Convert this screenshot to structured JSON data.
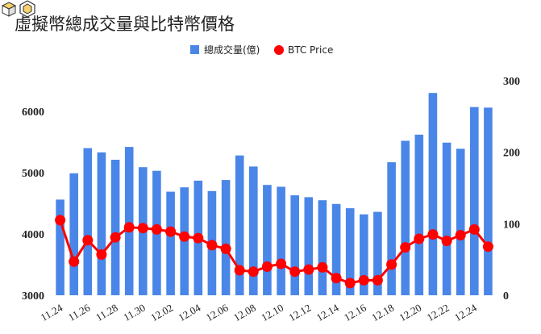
{
  "chart_data": {
    "type": "bar",
    "title": "虛擬幣總成交量與比特幣價格",
    "categories": [
      "11.24",
      "11.25",
      "11.26",
      "11.27",
      "11.28",
      "11.29",
      "11.30",
      "12.01",
      "12.02",
      "12.03",
      "12.04",
      "12.05",
      "12.06",
      "12.07",
      "12.08",
      "12.09",
      "12.10",
      "12.11",
      "12.12",
      "12.13",
      "12.14",
      "12.15",
      "12.16",
      "12.17",
      "12.18",
      "12.19",
      "12.20",
      "12.21",
      "12.22",
      "12.23",
      "12.24",
      "12.25"
    ],
    "xtick_labels": [
      "11.24",
      "",
      "11.26",
      "",
      "11.28",
      "",
      "11.30",
      "",
      "12.02",
      "",
      "12.04",
      "",
      "12.06",
      "",
      "12.08",
      "",
      "12.10",
      "",
      "12.12",
      "",
      "12.14",
      "",
      "12.16",
      "",
      "12.18",
      "",
      "12.20",
      "",
      "12.22",
      "",
      "12.24",
      ""
    ],
    "series": [
      {
        "name": "總成交量(億)",
        "type": "bar",
        "axis": "left",
        "color": "#4a86e8",
        "values": [
          4560,
          4990,
          5400,
          5330,
          5210,
          5420,
          5090,
          5030,
          4690,
          4760,
          4870,
          4700,
          4880,
          5280,
          5100,
          4800,
          4770,
          4630,
          4600,
          4550,
          4490,
          4420,
          4320,
          4360,
          5170,
          5520,
          5620,
          6300,
          5490,
          5390,
          6070,
          6060
        ]
      },
      {
        "name": "BTC Price",
        "type": "line",
        "axis": "right",
        "color": "#ff0000",
        "values": [
          105,
          47,
          77,
          57,
          81,
          95,
          94,
          92,
          89,
          82,
          80,
          70,
          65,
          35,
          33,
          40,
          44,
          33,
          36,
          39,
          24,
          17,
          21,
          21,
          43,
          67,
          79,
          85,
          76,
          84,
          92,
          68
        ]
      }
    ],
    "y_left": {
      "min": 3000,
      "max": 6500,
      "ticks": [
        3000,
        4000,
        5000,
        6000
      ]
    },
    "y_right": {
      "min": 0,
      "max": 300,
      "ticks": [
        0,
        100,
        200,
        300
      ]
    },
    "legend": {
      "position": "top"
    },
    "grid": false
  }
}
